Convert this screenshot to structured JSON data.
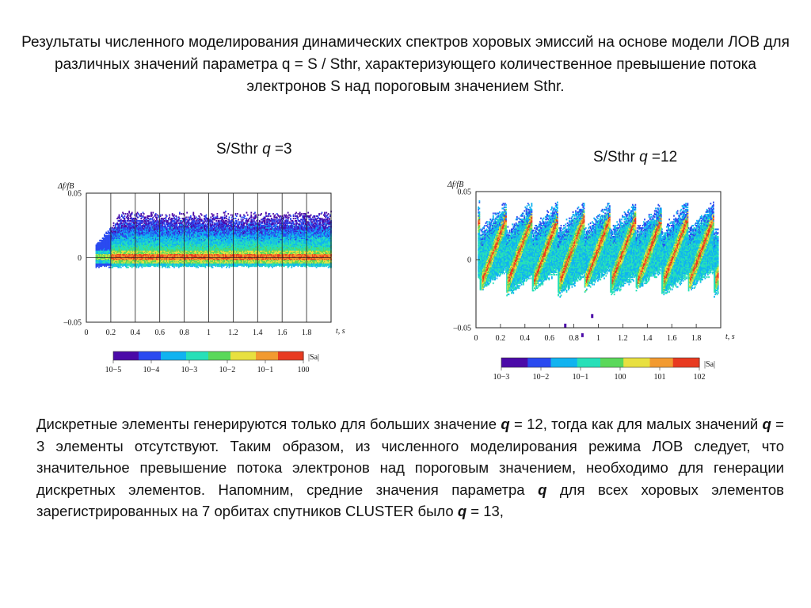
{
  "slide": {
    "title": "Результаты численного моделирования динамических спектров хоровых эмиссий на основе модели ЛОВ для различных значений параметра q = S / Sthr, характеризующего  количественное превышение потока  электронов S над пороговым  значением Sthr.",
    "panel1_title_prefix": "S/Sthr ",
    "panel1_title_var": "q",
    "panel1_title_value": " =3",
    "panel2_title_prefix": "S/Sthr ",
    "panel2_title_var": "q",
    "panel2_title_value": " =12",
    "body": {
      "s1": "Дискретные элементы генерируются только для больших значение ",
      "q1": "q",
      "s2": " = 12, тогда как для малых значений ",
      "q2": "q",
      "s3": " = 3 элементы отсутствуют. Таким образом, из численного моделирования режима ЛОВ следует, что значительное превышение потока электронов над пороговым значением, необходимо для генерации дискретных элементов. Напомним, средние значения параметра ",
      "q3": "q",
      "s4": " для всех хоровых элементов зарегистрированных на 7 орбитах спутников CLUSTER было ",
      "q4": "q",
      "s5": " = 13,"
    }
  },
  "chart_data": [
    {
      "type": "heatmap",
      "title": "S/Sthr q =3",
      "q": 3,
      "ylabel": "Δf/fB",
      "xlabel": "t, s",
      "xlim": [
        0,
        2.0
      ],
      "ylim": [
        -0.05,
        0.05
      ],
      "x_ticks": [
        "0",
        "0.2",
        "0.4",
        "0.6",
        "0.8",
        "1",
        "1.2",
        "1.4",
        "1.6",
        "1.8"
      ],
      "y_ticks": [
        "0.05",
        "0",
        "–0.05"
      ],
      "grid": true,
      "colorbar": {
        "label": "|Sa|",
        "ticks": [
          "10−5",
          "10−4",
          "10−3",
          "10−2",
          "10−1",
          "100"
        ],
        "colors": [
          "#4b0aa8",
          "#2a4af0",
          "#11b3f0",
          "#27e0b8",
          "#5ad85a",
          "#e8e040",
          "#f29a30",
          "#e83a20"
        ]
      },
      "features": "continuous band centered at Δf/fB ≈ 0 from t ≈ 0.1 s to 2.0 s, upper edge up to ≈ +0.03, lower edge ≈ −0.007"
    },
    {
      "type": "heatmap",
      "title": "S/Sthr q =12",
      "q": 12,
      "ylabel": "Δf/fB",
      "xlabel": "t, s",
      "xlim": [
        0,
        2.0
      ],
      "ylim": [
        -0.05,
        0.05
      ],
      "x_ticks": [
        "0",
        "0.2",
        "0.4",
        "0.6",
        "0.8",
        "1",
        "1.2",
        "1.4",
        "1.6",
        "1.8"
      ],
      "y_ticks": [
        "0.05",
        "0",
        "–0.05"
      ],
      "grid": false,
      "colorbar": {
        "label": "|Sa|",
        "ticks": [
          "10−3",
          "10−2",
          "10−1",
          "100",
          "101",
          "102"
        ],
        "colors": [
          "#4b0aa8",
          "#2a4af0",
          "#11b3f0",
          "#27e0b8",
          "#5ad85a",
          "#e8e040",
          "#f29a30",
          "#e83a20"
        ]
      },
      "features": "about 8 discrete rising-tone elements, quasi-periodic, period ≈ 0.21 s, spanning Δf/fB ≈ −0.025 to +0.04"
    }
  ]
}
